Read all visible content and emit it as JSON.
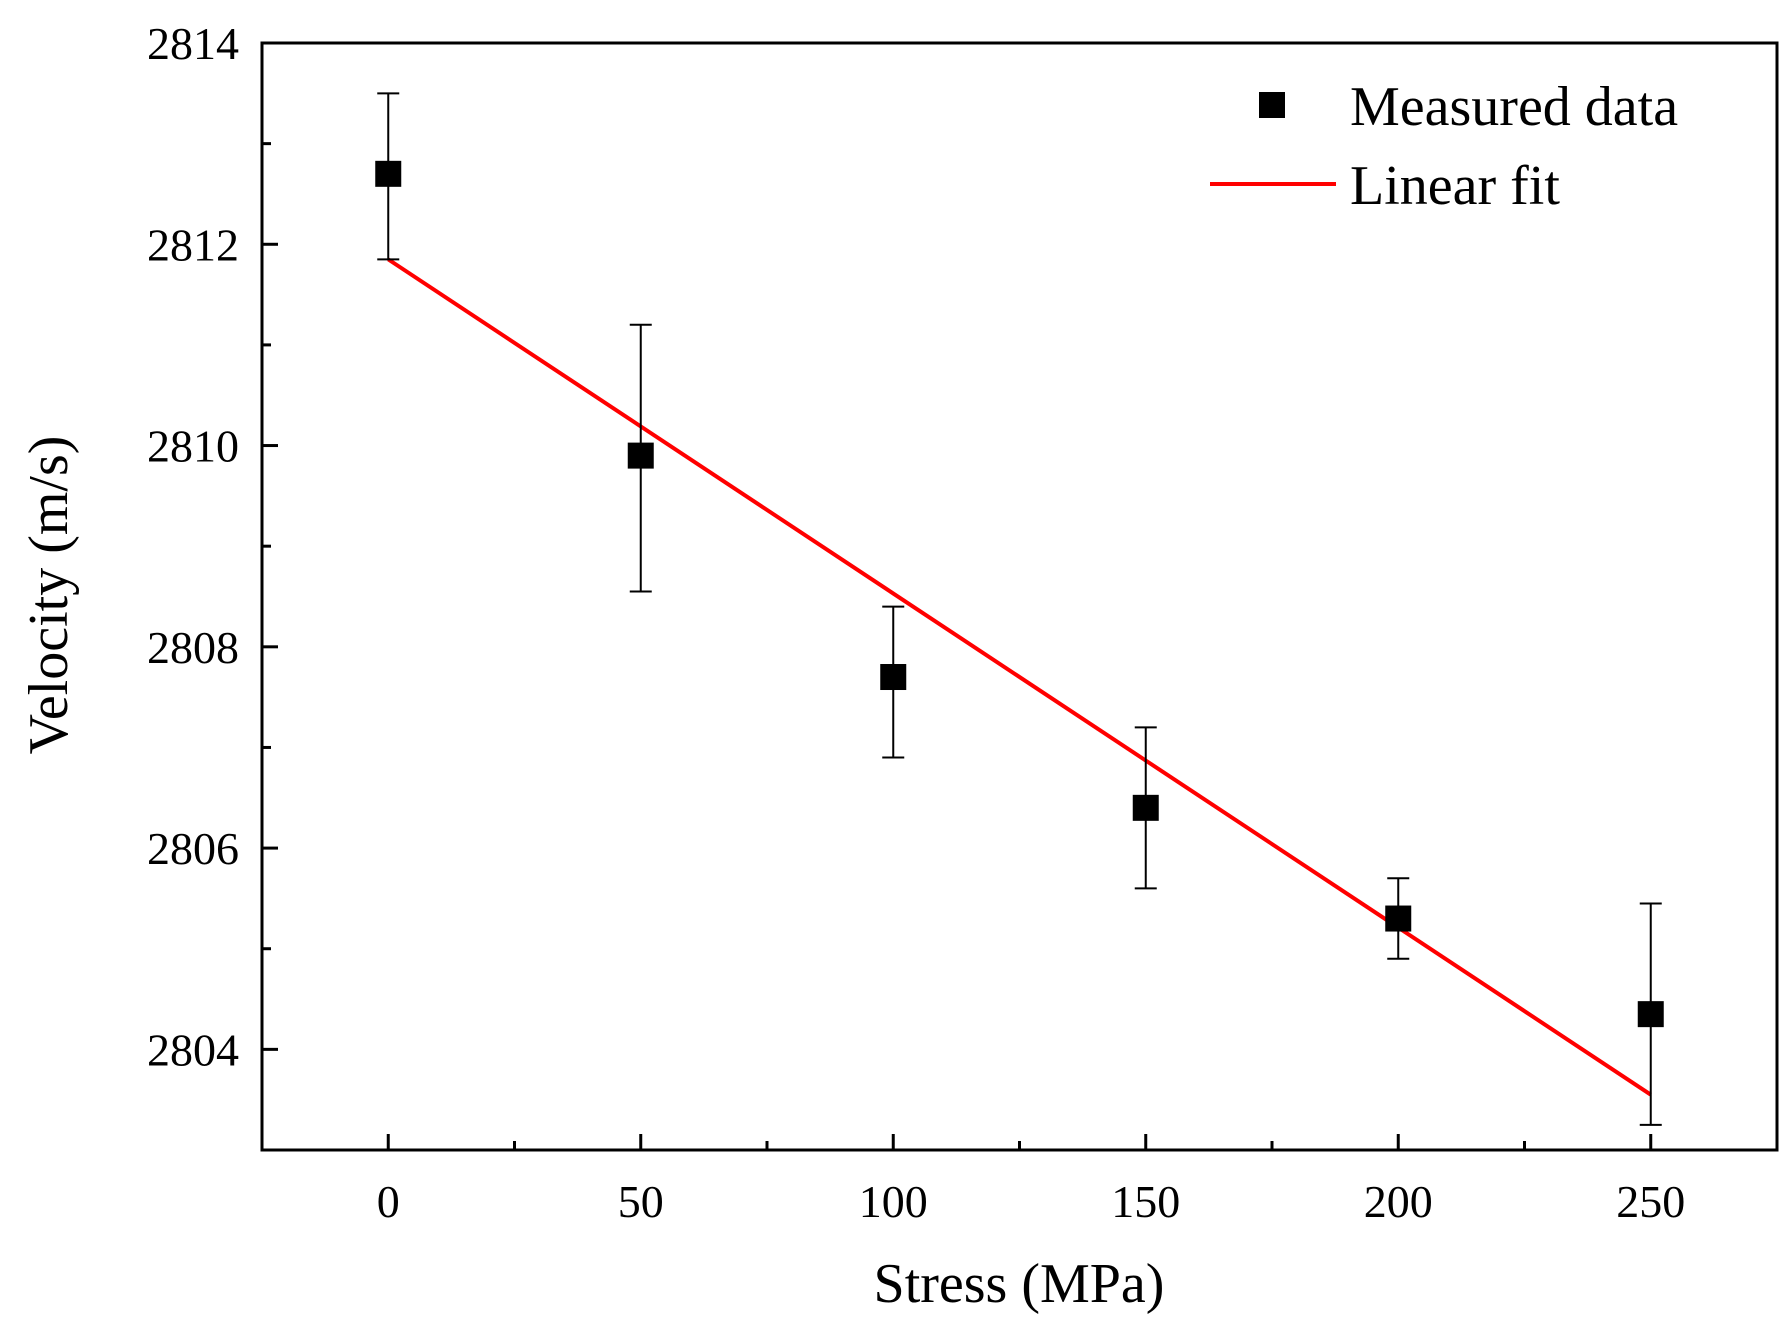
{
  "chart_data": {
    "type": "scatter",
    "title": "",
    "xlabel": "Stress (MPa)",
    "ylabel": "Velocity (m/s)",
    "xlim": [
      -25,
      275
    ],
    "ylim": [
      2803,
      2814
    ],
    "xticks": [
      0,
      50,
      100,
      150,
      200,
      250
    ],
    "yticks": [
      2804,
      2806,
      2808,
      2810,
      2812,
      2814
    ],
    "xtick_labels": [
      "0",
      "50",
      "100",
      "150",
      "200",
      "250"
    ],
    "ytick_labels": [
      "2804",
      "2806",
      "2808",
      "2810",
      "2812",
      "2814"
    ],
    "grid": false,
    "legend_position": "top-right",
    "series": [
      {
        "name": "Measured data",
        "kind": "scatter",
        "marker": "square",
        "color": "#000000",
        "x": [
          0,
          50,
          100,
          150,
          200,
          250
        ],
        "y": [
          2812.7,
          2809.9,
          2807.7,
          2806.4,
          2805.3,
          2804.35
        ],
        "err_low": [
          2811.85,
          2808.55,
          2806.9,
          2805.6,
          2804.9,
          2803.25
        ],
        "err_high": [
          2813.5,
          2811.2,
          2808.4,
          2807.2,
          2805.7,
          2805.45
        ]
      },
      {
        "name": "Linear fit",
        "kind": "line",
        "color": "#ff0000",
        "x": [
          0,
          250
        ],
        "y": [
          2811.85,
          2803.55
        ]
      }
    ]
  }
}
